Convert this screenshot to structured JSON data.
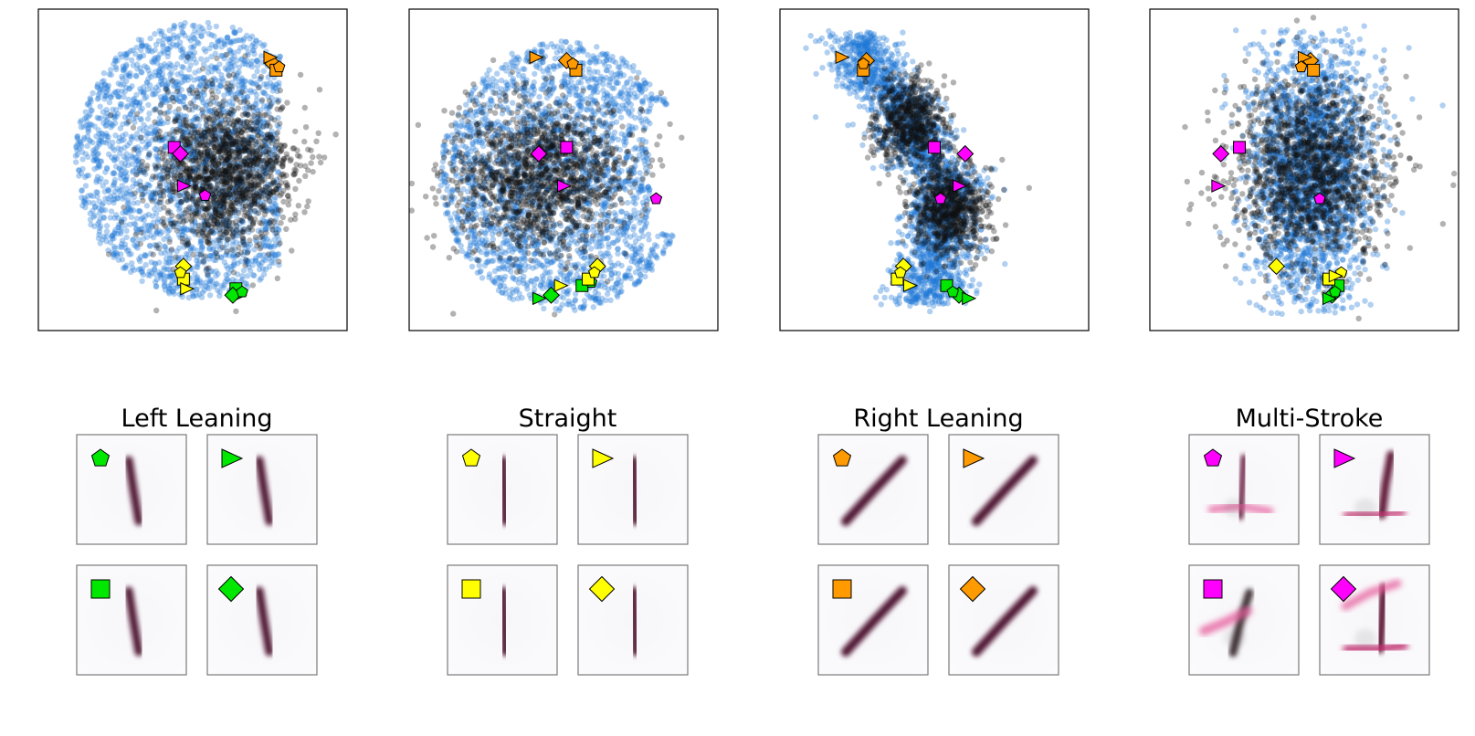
{
  "chart_data": {
    "type": "scatter",
    "description_note": "",
    "marker_colors": {
      "Left Leaning": "#00e800",
      "Straight": "#ffff00",
      "Right Leaning": "#ff9a00",
      "Multi-Stroke": "#ff00ff"
    },
    "cloud_colors": {
      "background": "#1f78d6",
      "foreground": "#111111"
    },
    "marker_shapes": [
      "pentagon",
      "triangle-right",
      "square",
      "diamond"
    ],
    "panels": [
      {
        "xlim": [
          0,
          100
        ],
        "ylim": [
          0,
          100
        ],
        "markers": [
          {
            "group": "Left Leaning",
            "shape": "square",
            "x": 64,
            "y": 13
          },
          {
            "group": "Left Leaning",
            "shape": "triangle-right",
            "x": 65,
            "y": 11
          },
          {
            "group": "Left Leaning",
            "shape": "diamond",
            "x": 63,
            "y": 11
          },
          {
            "group": "Left Leaning",
            "shape": "pentagon",
            "x": 66,
            "y": 12
          },
          {
            "group": "Straight",
            "shape": "diamond",
            "x": 47,
            "y": 20
          },
          {
            "group": "Straight",
            "shape": "square",
            "x": 47,
            "y": 16
          },
          {
            "group": "Straight",
            "shape": "triangle-right",
            "x": 48,
            "y": 13
          },
          {
            "group": "Straight",
            "shape": "pentagon",
            "x": 46,
            "y": 18
          },
          {
            "group": "Right Leaning",
            "shape": "diamond",
            "x": 76,
            "y": 83
          },
          {
            "group": "Right Leaning",
            "shape": "square",
            "x": 77,
            "y": 81
          },
          {
            "group": "Right Leaning",
            "shape": "triangle-right",
            "x": 75,
            "y": 85
          },
          {
            "group": "Right Leaning",
            "shape": "pentagon",
            "x": 78,
            "y": 82
          },
          {
            "group": "Multi-Stroke",
            "shape": "square",
            "x": 44,
            "y": 57
          },
          {
            "group": "Multi-Stroke",
            "shape": "diamond",
            "x": 46,
            "y": 55
          },
          {
            "group": "Multi-Stroke",
            "shape": "triangle-right",
            "x": 47,
            "y": 45
          },
          {
            "group": "Multi-Stroke",
            "shape": "pentagon",
            "x": 54,
            "y": 42
          }
        ]
      },
      {
        "xlim": [
          0,
          100
        ],
        "ylim": [
          0,
          100
        ],
        "markers": [
          {
            "group": "Left Leaning",
            "shape": "triangle-right",
            "x": 42,
            "y": 10
          },
          {
            "group": "Left Leaning",
            "shape": "diamond",
            "x": 46,
            "y": 11
          },
          {
            "group": "Left Leaning",
            "shape": "square",
            "x": 56,
            "y": 14
          },
          {
            "group": "Left Leaning",
            "shape": "pentagon",
            "x": 59,
            "y": 15
          },
          {
            "group": "Straight",
            "shape": "triangle-right",
            "x": 49,
            "y": 14
          },
          {
            "group": "Straight",
            "shape": "square",
            "x": 58,
            "y": 16
          },
          {
            "group": "Straight",
            "shape": "diamond",
            "x": 61,
            "y": 20
          },
          {
            "group": "Straight",
            "shape": "pentagon",
            "x": 60,
            "y": 18
          },
          {
            "group": "Right Leaning",
            "shape": "triangle-right",
            "x": 41,
            "y": 85
          },
          {
            "group": "Right Leaning",
            "shape": "diamond",
            "x": 51,
            "y": 84
          },
          {
            "group": "Right Leaning",
            "shape": "square",
            "x": 54,
            "y": 81
          },
          {
            "group": "Right Leaning",
            "shape": "pentagon",
            "x": 53,
            "y": 83
          },
          {
            "group": "Multi-Stroke",
            "shape": "diamond",
            "x": 42,
            "y": 55
          },
          {
            "group": "Multi-Stroke",
            "shape": "square",
            "x": 51,
            "y": 57
          },
          {
            "group": "Multi-Stroke",
            "shape": "triangle-right",
            "x": 50,
            "y": 45
          },
          {
            "group": "Multi-Stroke",
            "shape": "pentagon",
            "x": 80,
            "y": 41
          }
        ]
      },
      {
        "xlim": [
          0,
          100
        ],
        "ylim": [
          0,
          100
        ],
        "markers": [
          {
            "group": "Left Leaning",
            "shape": "square",
            "x": 54,
            "y": 14
          },
          {
            "group": "Left Leaning",
            "shape": "diamond",
            "x": 58,
            "y": 11
          },
          {
            "group": "Left Leaning",
            "shape": "triangle-right",
            "x": 61,
            "y": 10
          },
          {
            "group": "Left Leaning",
            "shape": "pentagon",
            "x": 56,
            "y": 12
          },
          {
            "group": "Straight",
            "shape": "diamond",
            "x": 40,
            "y": 20
          },
          {
            "group": "Straight",
            "shape": "square",
            "x": 38,
            "y": 16
          },
          {
            "group": "Straight",
            "shape": "triangle-right",
            "x": 42,
            "y": 14
          },
          {
            "group": "Straight",
            "shape": "pentagon",
            "x": 39,
            "y": 18
          },
          {
            "group": "Right Leaning",
            "shape": "triangle-right",
            "x": 20,
            "y": 85
          },
          {
            "group": "Right Leaning",
            "shape": "diamond",
            "x": 28,
            "y": 84
          },
          {
            "group": "Right Leaning",
            "shape": "square",
            "x": 27,
            "y": 81
          },
          {
            "group": "Right Leaning",
            "shape": "pentagon",
            "x": 27,
            "y": 83
          },
          {
            "group": "Multi-Stroke",
            "shape": "square",
            "x": 50,
            "y": 57
          },
          {
            "group": "Multi-Stroke",
            "shape": "diamond",
            "x": 60,
            "y": 55
          },
          {
            "group": "Multi-Stroke",
            "shape": "triangle-right",
            "x": 58,
            "y": 45
          },
          {
            "group": "Multi-Stroke",
            "shape": "pentagon",
            "x": 52,
            "y": 41
          }
        ]
      },
      {
        "xlim": [
          0,
          100
        ],
        "ylim": [
          0,
          100
        ],
        "markers": [
          {
            "group": "Left Leaning",
            "shape": "square",
            "x": 61,
            "y": 14
          },
          {
            "group": "Left Leaning",
            "shape": "diamond",
            "x": 59,
            "y": 11
          },
          {
            "group": "Left Leaning",
            "shape": "triangle-right",
            "x": 58,
            "y": 10
          },
          {
            "group": "Left Leaning",
            "shape": "pentagon",
            "x": 60,
            "y": 12
          },
          {
            "group": "Straight",
            "shape": "diamond",
            "x": 41,
            "y": 20
          },
          {
            "group": "Straight",
            "shape": "square",
            "x": 58,
            "y": 16
          },
          {
            "group": "Straight",
            "shape": "pentagon",
            "x": 62,
            "y": 18
          },
          {
            "group": "Straight",
            "shape": "triangle-right",
            "x": 60,
            "y": 17
          },
          {
            "group": "Right Leaning",
            "shape": "diamond",
            "x": 52,
            "y": 84
          },
          {
            "group": "Right Leaning",
            "shape": "square",
            "x": 53,
            "y": 81
          },
          {
            "group": "Right Leaning",
            "shape": "triangle-right",
            "x": 50,
            "y": 85
          },
          {
            "group": "Right Leaning",
            "shape": "pentagon",
            "x": 49,
            "y": 82
          },
          {
            "group": "Multi-Stroke",
            "shape": "diamond",
            "x": 23,
            "y": 55
          },
          {
            "group": "Multi-Stroke",
            "shape": "square",
            "x": 29,
            "y": 57
          },
          {
            "group": "Multi-Stroke",
            "shape": "triangle-right",
            "x": 22,
            "y": 45
          },
          {
            "group": "Multi-Stroke",
            "shape": "pentagon",
            "x": 55,
            "y": 41
          }
        ]
      }
    ],
    "digit_groups": [
      {
        "title": "Left Leaning",
        "color": "#00e800",
        "ink": "#4a0f2a",
        "samples": [
          {
            "shape": "pentagon",
            "stroke": "left"
          },
          {
            "shape": "triangle-right",
            "stroke": "left"
          },
          {
            "shape": "square",
            "stroke": "left"
          },
          {
            "shape": "diamond",
            "stroke": "left"
          }
        ]
      },
      {
        "title": "Straight",
        "color": "#ffff00",
        "ink": "#4a0f2a",
        "samples": [
          {
            "shape": "pentagon",
            "stroke": "straight"
          },
          {
            "shape": "triangle-right",
            "stroke": "straight"
          },
          {
            "shape": "square",
            "stroke": "straight"
          },
          {
            "shape": "diamond",
            "stroke": "straight"
          }
        ]
      },
      {
        "title": "Right Leaning",
        "color": "#ff9a00",
        "ink": "#4a0f2a",
        "samples": [
          {
            "shape": "pentagon",
            "stroke": "right"
          },
          {
            "shape": "triangle-right",
            "stroke": "right"
          },
          {
            "shape": "square",
            "stroke": "right"
          },
          {
            "shape": "diamond",
            "stroke": "right"
          }
        ]
      },
      {
        "title": "Multi-Stroke",
        "color": "#ff00ff",
        "ink": "#5a1030",
        "samples": [
          {
            "shape": "pentagon",
            "stroke": "multi1"
          },
          {
            "shape": "triangle-right",
            "stroke": "multi2"
          },
          {
            "shape": "square",
            "stroke": "multi3"
          },
          {
            "shape": "diamond",
            "stroke": "multi4"
          }
        ]
      }
    ]
  }
}
